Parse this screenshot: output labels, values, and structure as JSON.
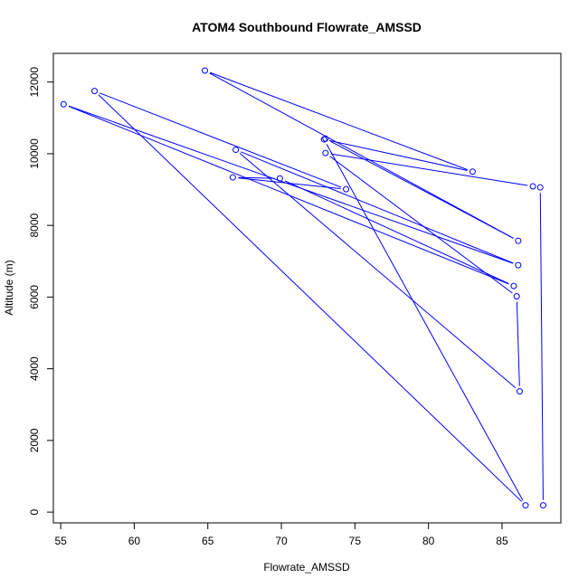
{
  "chart_data": {
    "type": "line",
    "title": "ATOM4 Southbound Flowrate_AMSSD",
    "xlabel": "Flowrate_AMSSD",
    "ylabel": "Altitude (m)",
    "xlim": [
      54.5,
      89.0
    ],
    "ylim": [
      -300,
      12800
    ],
    "xticks": [
      55,
      60,
      65,
      70,
      75,
      80,
      85
    ],
    "yticks": [
      0,
      2000,
      4000,
      6000,
      8000,
      10000,
      12000
    ],
    "grid": false,
    "series_color": "#0000ff",
    "points": [
      {
        "x": 87.8,
        "y": 190
      },
      {
        "x": 87.6,
        "y": 9060
      },
      {
        "x": 87.1,
        "y": 9090
      },
      {
        "x": 73.0,
        "y": 10020
      },
      {
        "x": 86.0,
        "y": 6020
      },
      {
        "x": 86.2,
        "y": 3370
      },
      {
        "x": 66.9,
        "y": 10110
      },
      {
        "x": 86.1,
        "y": 6890
      },
      {
        "x": 55.2,
        "y": 11380
      },
      {
        "x": 85.8,
        "y": 6310
      },
      {
        "x": 69.9,
        "y": 9310
      },
      {
        "x": 66.7,
        "y": 9340
      },
      {
        "x": 74.4,
        "y": 9010
      },
      {
        "x": 57.3,
        "y": 11750
      },
      {
        "x": 86.6,
        "y": 190
      },
      {
        "x": 72.9,
        "y": 10400
      },
      {
        "x": 83.0,
        "y": 9500
      },
      {
        "x": 64.8,
        "y": 12320
      },
      {
        "x": 86.1,
        "y": 7570
      },
      {
        "x": 73.0,
        "y": 10420
      }
    ]
  }
}
